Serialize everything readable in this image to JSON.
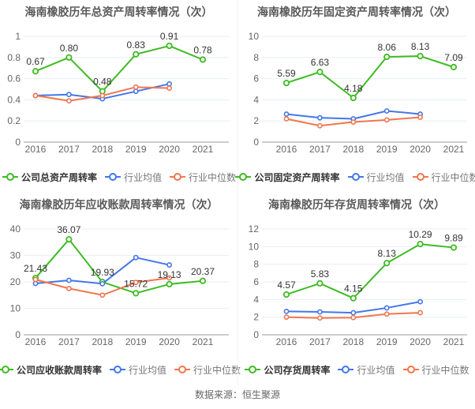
{
  "page": {
    "footer": "数据来源：恒生聚源"
  },
  "colors": {
    "company": "#3fbb23",
    "mean": "#4377e8",
    "median": "#f0764f",
    "grid": "#e9eef5",
    "axis": "#999999",
    "tick_label": "#666666",
    "title": "#595959",
    "data_label": "#333333",
    "legend_primary": "#333333",
    "legend_secondary": "#777777",
    "marker_fill": "#ffffff",
    "footer": "#666666"
  },
  "chart_data": [
    {
      "type": "line",
      "title": "海南橡胶历年总资产周转率情况（次）",
      "categories": [
        "2016",
        "2017",
        "2018",
        "2019",
        "2020",
        "2021"
      ],
      "ylim": [
        0,
        1
      ],
      "yticks": [
        0,
        0.2,
        0.4,
        0.6,
        0.8,
        1
      ],
      "grid": true,
      "legend_position": "bottom",
      "series": [
        {
          "name": "公司总资产周转率",
          "role": "company",
          "values": [
            0.67,
            0.8,
            0.48,
            0.83,
            0.91,
            0.78
          ],
          "point_labels": [
            "0.67",
            "0.80",
            "0.48",
            "0.83",
            "0.91",
            "0.78"
          ]
        },
        {
          "name": "行业均值",
          "role": "mean",
          "values": [
            0.44,
            0.45,
            0.41,
            0.48,
            0.55,
            null
          ]
        },
        {
          "name": "行业中位数",
          "role": "median",
          "values": [
            0.44,
            0.39,
            0.44,
            0.52,
            0.51,
            null
          ]
        }
      ]
    },
    {
      "type": "line",
      "title": "海南橡胶历年固定资产周转率情况（次）",
      "categories": [
        "2016",
        "2017",
        "2018",
        "2019",
        "2020",
        "2021"
      ],
      "ylim": [
        0,
        10
      ],
      "yticks": [
        0,
        2,
        4,
        6,
        8,
        10
      ],
      "grid": true,
      "legend_position": "bottom",
      "series": [
        {
          "name": "公司固定资产周转率",
          "role": "company",
          "values": [
            5.59,
            6.63,
            4.18,
            8.06,
            8.13,
            7.09
          ],
          "point_labels": [
            "5.59",
            "6.63",
            "4.18",
            "8.06",
            "8.13",
            "7.09"
          ]
        },
        {
          "name": "行业均值",
          "role": "mean",
          "values": [
            2.65,
            2.3,
            2.2,
            2.95,
            2.65,
            null
          ]
        },
        {
          "name": "行业中位数",
          "role": "median",
          "values": [
            2.2,
            1.55,
            1.9,
            2.1,
            2.35,
            null
          ]
        }
      ]
    },
    {
      "type": "line",
      "title": "海南橡胶历年应收账款周转率情况（次）",
      "categories": [
        "2016",
        "2017",
        "2018",
        "2019",
        "2020",
        "2021"
      ],
      "ylim": [
        0,
        40
      ],
      "yticks": [
        0,
        10,
        20,
        30,
        40
      ],
      "grid": true,
      "legend_position": "bottom",
      "series": [
        {
          "name": "公司应收账款周转率",
          "role": "company",
          "values": [
            21.43,
            36.07,
            19.93,
            15.72,
            19.13,
            20.37
          ],
          "point_labels": [
            "21.43",
            "36.07",
            "19.93",
            "15.72",
            "19.13",
            "20.37"
          ]
        },
        {
          "name": "行业均值",
          "role": "mean",
          "values": [
            19.4,
            20.6,
            19.3,
            29.2,
            26.4,
            null
          ]
        },
        {
          "name": "行业中位数",
          "role": "median",
          "values": [
            20.9,
            17.5,
            15.0,
            19.8,
            21.5,
            null
          ]
        }
      ]
    },
    {
      "type": "line",
      "title": "海南橡胶历年存货周转率情况（次）",
      "categories": [
        "2016",
        "2017",
        "2018",
        "2019",
        "2020",
        "2021"
      ],
      "ylim": [
        0,
        12
      ],
      "yticks": [
        0,
        2,
        4,
        6,
        8,
        10,
        12
      ],
      "grid": true,
      "legend_position": "bottom",
      "series": [
        {
          "name": "公司存货周转率",
          "role": "company",
          "values": [
            4.57,
            5.83,
            4.15,
            8.13,
            10.29,
            9.89
          ],
          "point_labels": [
            "4.57",
            "5.83",
            "4.15",
            "8.13",
            "10.29",
            "9.89"
          ]
        },
        {
          "name": "行业均值",
          "role": "mean",
          "values": [
            2.65,
            2.6,
            2.5,
            3.05,
            3.75,
            null
          ]
        },
        {
          "name": "行业中位数",
          "role": "median",
          "values": [
            2.0,
            1.9,
            1.95,
            2.35,
            2.5,
            null
          ]
        }
      ]
    }
  ]
}
